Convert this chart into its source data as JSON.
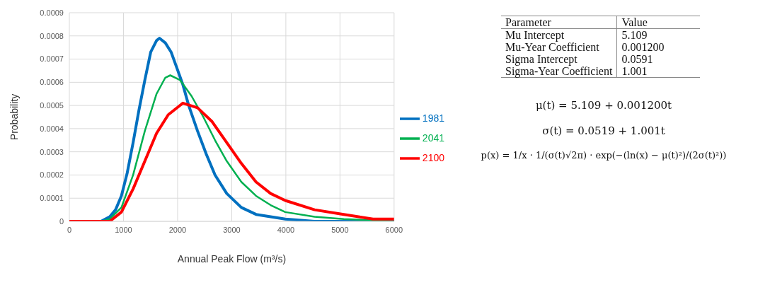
{
  "chart_data": [
    {
      "type": "line",
      "xlabel": "Annual Peak Flow (m³/s)",
      "ylabel": "Probability",
      "xlim": [
        0,
        6000
      ],
      "xticks": [
        0,
        1000,
        2000,
        3000,
        4000,
        5000,
        6000
      ],
      "ylim": [
        0,
        0.0009
      ],
      "yticks": [
        0,
        0.0001,
        0.0002,
        0.0003,
        0.0004,
        0.0005,
        0.0006,
        0.0007,
        0.0008,
        0.0009
      ],
      "grid": true,
      "legend": "right",
      "line_style": "solid",
      "series": [
        {
          "name": "1981",
          "color": "#0070c0",
          "x": [
            0,
            584,
            746,
            854,
            962,
            1070,
            1178,
            1286,
            1395,
            1503,
            1611,
            1665,
            1773,
            1881,
            1989,
            2097,
            2205,
            2368,
            2530,
            2692,
            2908,
            3178,
            3449,
            3989,
            4530,
            6000
          ],
          "values": [
            0,
            0,
            2e-05,
            5e-05,
            0.00011,
            0.00021,
            0.00034,
            0.00048,
            0.00061,
            0.00073,
            0.00078,
            0.00079,
            0.00077,
            0.00073,
            0.00066,
            0.00059,
            0.0005,
            0.00039,
            0.00029,
            0.0002,
            0.00012,
            6e-05,
            3e-05,
            1e-05,
            0,
            0
          ]
        },
        {
          "name": "2041",
          "color": "#00b050",
          "x": [
            0,
            600,
            746,
            962,
            1178,
            1395,
            1611,
            1773,
            1865,
            2043,
            2259,
            2476,
            2692,
            2908,
            3178,
            3449,
            3719,
            3989,
            4530,
            5070,
            6000
          ],
          "values": [
            0,
            0,
            1e-05,
            6e-05,
            0.0002,
            0.00039,
            0.00055,
            0.00062,
            0.00063,
            0.00061,
            0.00054,
            0.00045,
            0.00035,
            0.00026,
            0.00017,
            0.00011,
            7e-05,
            4e-05,
            2e-05,
            1e-05,
            0
          ]
        },
        {
          "name": "2100",
          "color": "#ff0000",
          "x": [
            0,
            650,
            746,
            962,
            1178,
            1395,
            1611,
            1827,
            2097,
            2368,
            2638,
            2908,
            3178,
            3449,
            3719,
            3989,
            4530,
            5070,
            5611,
            6000
          ],
          "values": [
            0,
            0,
            0,
            4e-05,
            0.00014,
            0.00026,
            0.00038,
            0.00046,
            0.00051,
            0.00049,
            0.00043,
            0.00034,
            0.00025,
            0.00017,
            0.00012,
            9e-05,
            5e-05,
            3e-05,
            1e-05,
            1e-05
          ]
        }
      ]
    },
    {
      "type": "other",
      "annotations": [
        "Parameter",
        "Value",
        "Mu Intercept",
        "5.109",
        "Mu-Year Coefficient",
        "0.001200",
        "Sigma Intercept",
        "0.0591",
        "Sigma-Year Coefficient",
        "1.001",
        "μ(t) = 5.109 + 0.001200t",
        "σ(t) = 0.0519 + 1.001t",
        "p(x) = 1/x · 1/(σ(t)√2π) · exp(−(ln(x) − μ(t)²)/(2σ(t)²))"
      ]
    }
  ]
}
